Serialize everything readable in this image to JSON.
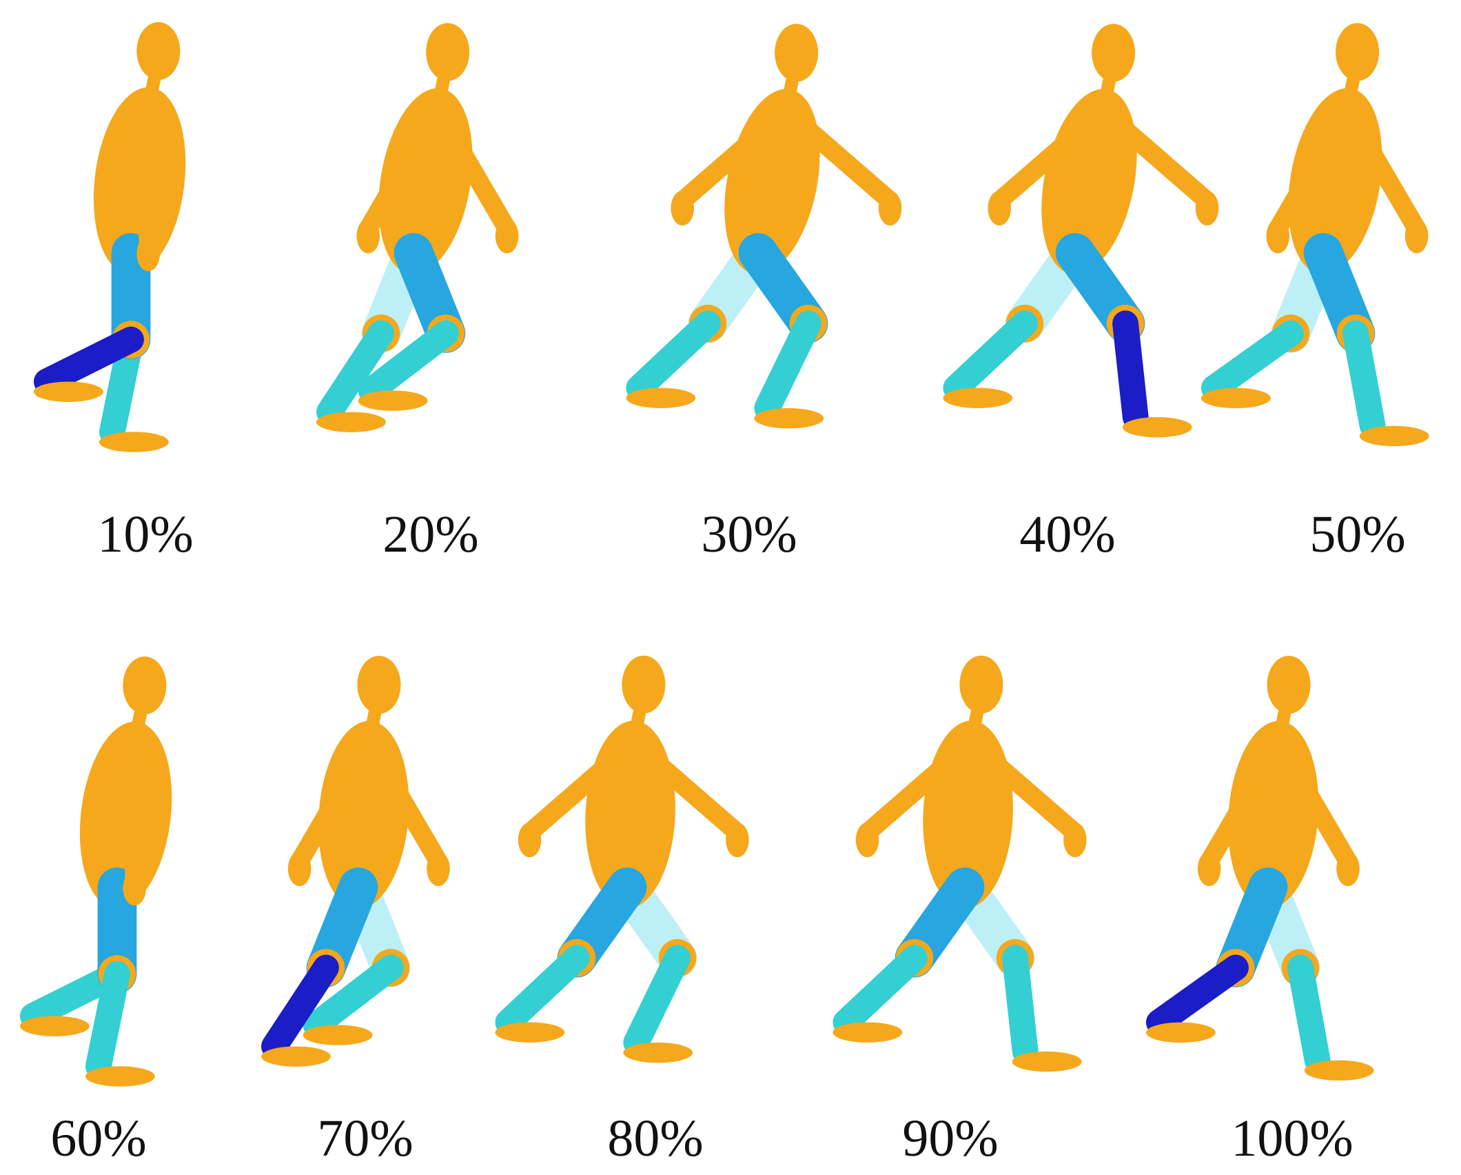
{
  "frames": [
    {
      "label": "10%"
    },
    {
      "label": "20%"
    },
    {
      "label": "30%"
    },
    {
      "label": "40%"
    },
    {
      "label": "50%"
    },
    {
      "label": "60%"
    },
    {
      "label": "70%"
    },
    {
      "label": "80%"
    },
    {
      "label": "90%"
    },
    {
      "label": "100%"
    }
  ]
}
